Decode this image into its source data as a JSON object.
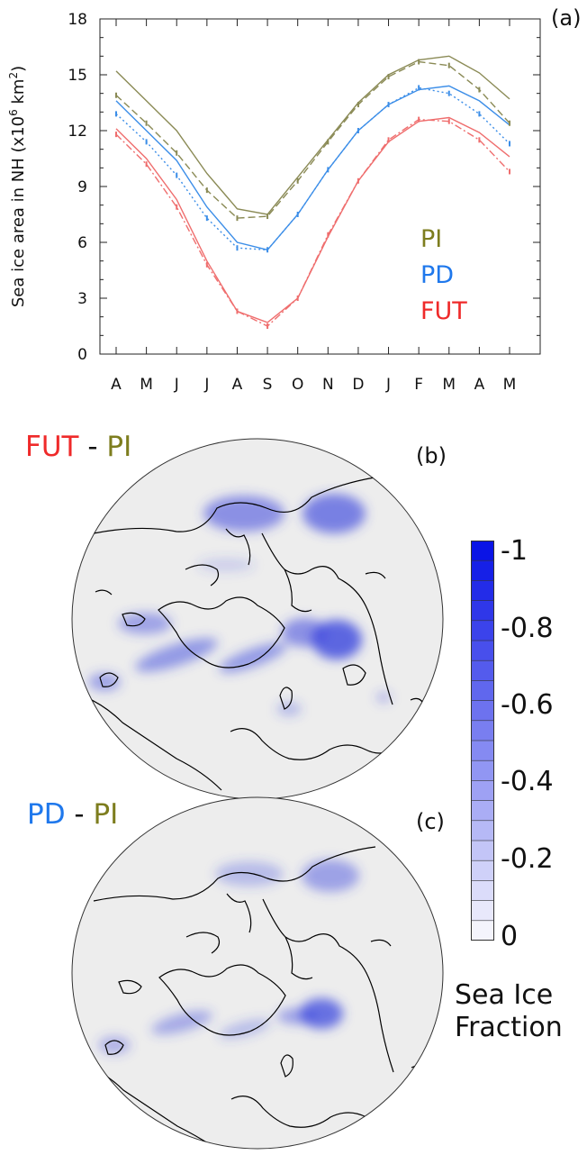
{
  "chart_data": [
    {
      "type": "line",
      "panel_label": "(a)",
      "ylabel_main": "Sea ice area in NH (x10",
      "ylabel_sup1": "6",
      "ylabel_mid": " km",
      "ylabel_sup2": "2",
      "ylabel_end": ")",
      "ylim": [
        0,
        18
      ],
      "yticks": [
        "0",
        "3",
        "6",
        "9",
        "12",
        "15",
        "18"
      ],
      "categories": [
        "A",
        "M",
        "J",
        "J",
        "A",
        "S",
        "O",
        "N",
        "D",
        "J",
        "F",
        "M",
        "A",
        "M"
      ],
      "legend_position": "lower-right",
      "series": [
        {
          "name": "PI",
          "variant": "solid",
          "color": "#8a8a55",
          "values": [
            15.2,
            13.6,
            12.0,
            9.7,
            7.8,
            7.5,
            9.5,
            11.5,
            13.5,
            15.0,
            15.8,
            16.0,
            15.1,
            13.7
          ]
        },
        {
          "name": "PI",
          "variant": "dashed",
          "color": "#8a8a55",
          "values": [
            13.9,
            12.4,
            10.8,
            8.8,
            7.3,
            7.4,
            9.3,
            11.4,
            13.4,
            14.9,
            15.7,
            15.5,
            14.2,
            12.4
          ]
        },
        {
          "name": "PD",
          "variant": "solid",
          "color": "#3c8ee8",
          "values": [
            13.6,
            12.0,
            10.4,
            7.9,
            6.0,
            5.6,
            7.5,
            9.9,
            12.0,
            13.4,
            14.2,
            14.4,
            13.6,
            12.3
          ]
        },
        {
          "name": "PD",
          "variant": "dotted",
          "color": "#3c8ee8",
          "values": [
            12.9,
            11.4,
            9.6,
            7.3,
            5.7,
            5.6,
            7.5,
            9.9,
            12.0,
            13.4,
            14.3,
            14.0,
            12.9,
            11.3
          ]
        },
        {
          "name": "FUT",
          "variant": "solid",
          "color": "#ef6e6e",
          "values": [
            12.1,
            10.5,
            8.3,
            5.0,
            2.3,
            1.7,
            3.0,
            6.3,
            9.3,
            11.4,
            12.5,
            12.7,
            11.9,
            10.6
          ]
        },
        {
          "name": "FUT",
          "variant": "dashdot",
          "color": "#ef6e6e",
          "values": [
            11.8,
            10.2,
            7.9,
            4.8,
            2.3,
            1.5,
            3.0,
            6.4,
            9.3,
            11.5,
            12.6,
            12.5,
            11.5,
            9.8
          ]
        }
      ],
      "legend": [
        {
          "label": "PI",
          "color": "#7d7d1e"
        },
        {
          "label": "PD",
          "color": "#1f78ec"
        },
        {
          "label": "FUT",
          "color": "#ef2a2a"
        }
      ]
    },
    {
      "type": "heatmap",
      "panel_label": "(b)",
      "title_a": "FUT",
      "title_sep": " - ",
      "title_b": "PI",
      "title_a_color": "#ef2a2a",
      "title_b_color": "#7d7d1e",
      "colorbar_label": "Sea Ice Fraction"
    },
    {
      "type": "heatmap",
      "panel_label": "(c)",
      "title_a": "PD",
      "title_sep": " - ",
      "title_b": "PI",
      "title_a_color": "#1f78ec",
      "title_b_color": "#7d7d1e",
      "colorbar_label": "Sea Ice Fraction"
    }
  ],
  "colorbar": {
    "title_line1": "Sea Ice",
    "title_line2": "Fraction",
    "range": [
      -1,
      0
    ],
    "labels": [
      "-1",
      "-0.8",
      "-0.6",
      "-0.4",
      "-0.2",
      "0"
    ],
    "color_max": "#0a14e6",
    "color_min": "#f4f4fc"
  },
  "colors": {
    "land_background": "#ededed",
    "coastline": "#000000",
    "ice_loss": "#3a45dd"
  }
}
